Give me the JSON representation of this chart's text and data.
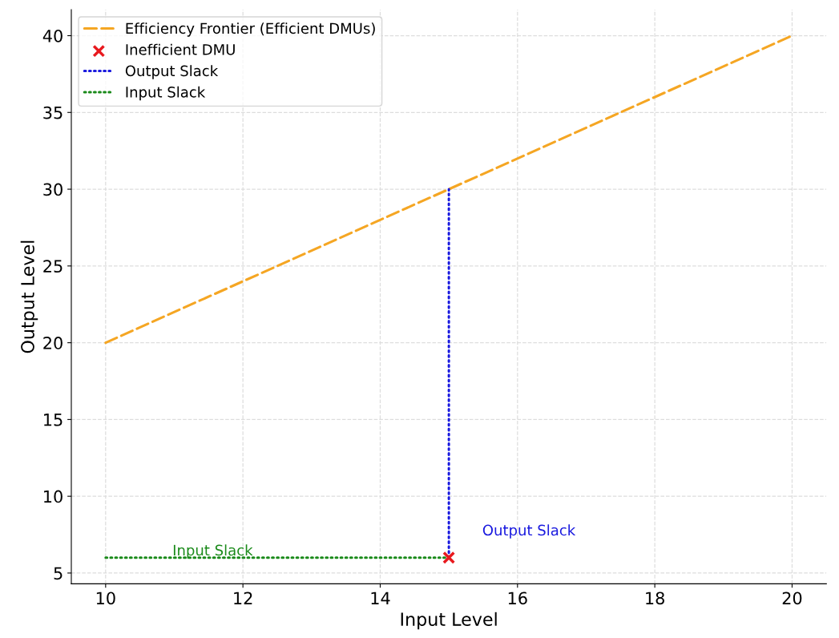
{
  "chart_data": {
    "type": "line",
    "xlabel": "Input Level",
    "ylabel": "Output Level",
    "series": [
      {
        "name": "Efficiency Frontier (Efficient DMUs)",
        "color": "#f5a623",
        "line_style": "dashed",
        "x": [
          10,
          20
        ],
        "values": [
          20,
          40
        ]
      },
      {
        "name": "Inefficient DMU",
        "color": "#e8191e",
        "type": "scatter",
        "marker": "cross",
        "x": [
          15
        ],
        "values": [
          6
        ]
      },
      {
        "name": "Output Slack",
        "color": "#1a1adf",
        "type": "line",
        "line_style": "dotted",
        "x": [
          15,
          15
        ],
        "values": [
          6,
          30
        ]
      },
      {
        "name": "Input Slack",
        "color": "#1a8a1a",
        "type": "line",
        "line_style": "dotted",
        "x": [
          10,
          15
        ],
        "values": [
          6,
          6
        ]
      }
    ],
    "annotations": [
      "Output Slack",
      "Input Slack"
    ],
    "xlim": [
      9.5,
      20.5
    ],
    "ylim": [
      4.3,
      41.7
    ],
    "xticks": [
      10,
      12,
      14,
      16,
      18,
      20
    ],
    "yticks": [
      5,
      10,
      15,
      20,
      25,
      30,
      35,
      40
    ],
    "grid": true,
    "legend": "top left"
  }
}
